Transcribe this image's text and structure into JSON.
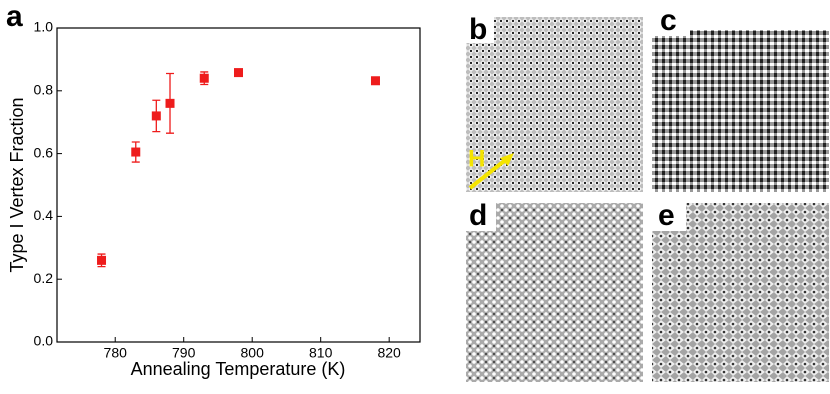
{
  "chart_data": {
    "type": "scatter",
    "panel_label": "a",
    "x_label": "Annealing Temperature (K)",
    "y_label": "Type I Vertex Fraction",
    "series": [
      {
        "color": "#ee1c1c",
        "x": [
          778,
          783,
          786,
          788,
          793,
          798,
          818
        ],
        "values": [
          0.26,
          0.605,
          0.72,
          0.76,
          0.84,
          0.858,
          0.832
        ],
        "errors": [
          0.02,
          0.032,
          0.05,
          0.095,
          0.02,
          0.008,
          0.01
        ]
      }
    ],
    "xlim": [
      771.5,
      824.5
    ],
    "xticks": [
      780,
      790,
      800,
      810,
      820
    ],
    "ylim": [
      0,
      1
    ],
    "yticks": [
      {
        "value": 0,
        "label": "0.0"
      },
      {
        "value": 0.2,
        "label": "0.2"
      },
      {
        "value": 0.4,
        "label": "0.4"
      },
      {
        "value": 0.6,
        "label": "0.6"
      },
      {
        "value": 0.8,
        "label": "0.8"
      },
      {
        "value": 1,
        "label": "1.0"
      }
    ]
  },
  "image_panels": [
    {
      "label": "b",
      "annotation": "H"
    },
    {
      "label": "c"
    },
    {
      "label": "d"
    },
    {
      "label": "e"
    }
  ]
}
